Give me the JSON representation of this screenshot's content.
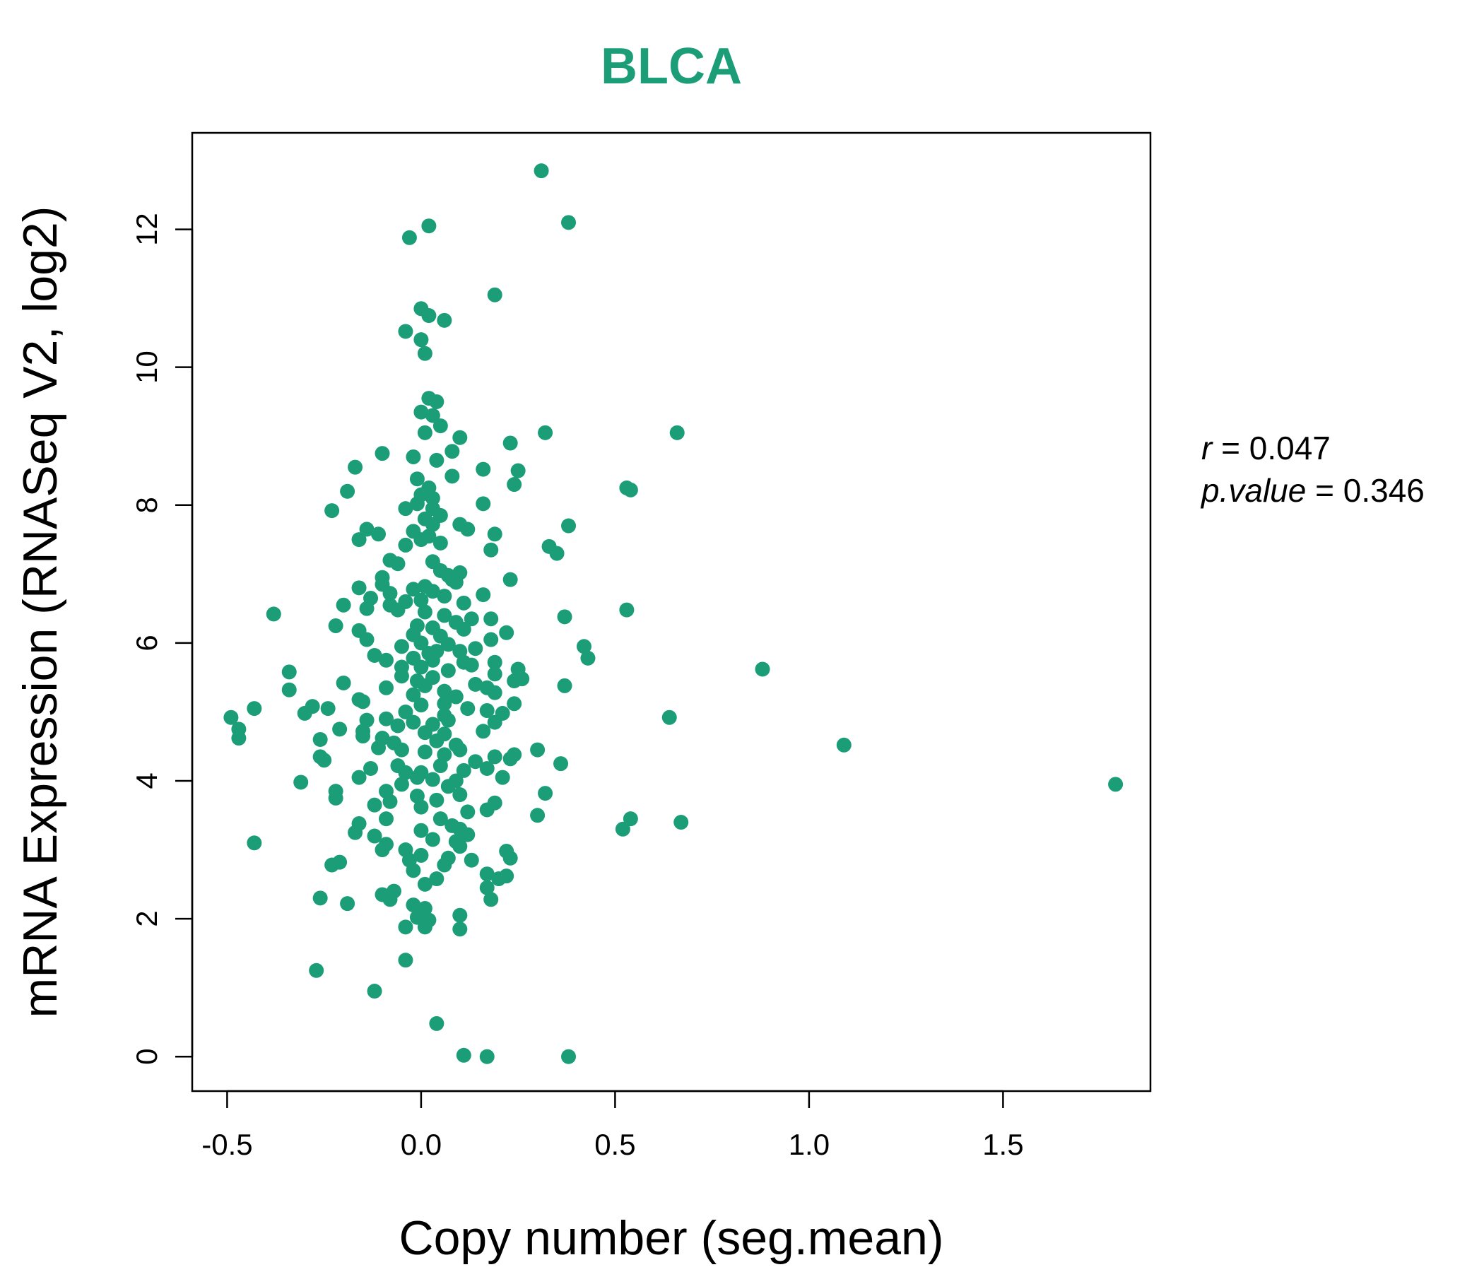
{
  "accent": "#1B9E77",
  "stats": {
    "r_label": "r",
    "r_value": "0.047",
    "p_label": "p.value",
    "p_value": "0.346",
    "equals": "="
  },
  "chart_data": {
    "type": "scatter",
    "title": "BLCA",
    "xlabel": "Copy number (seg.mean)",
    "ylabel": "mRNA Expression (RNASeq V2, log2)",
    "xlim": [
      -0.59,
      1.88
    ],
    "ylim": [
      -0.5,
      13.4
    ],
    "xticks": [
      -0.5,
      0.0,
      0.5,
      1.0,
      1.5
    ],
    "xtick_labels": [
      "-0.5",
      "0.0",
      "0.5",
      "1.0",
      "1.5"
    ],
    "yticks": [
      0,
      2,
      4,
      6,
      8,
      10,
      12
    ],
    "ytick_labels": [
      "0",
      "2",
      "4",
      "6",
      "8",
      "10",
      "12"
    ],
    "grid": false,
    "marker_color": "#1B9E77",
    "points": [
      [
        0.31,
        12.85
      ],
      [
        0.38,
        12.1
      ],
      [
        0.02,
        12.05
      ],
      [
        -0.03,
        11.88
      ],
      [
        0.19,
        11.05
      ],
      [
        0.0,
        10.85
      ],
      [
        0.02,
        10.75
      ],
      [
        0.06,
        10.68
      ],
      [
        -0.04,
        10.52
      ],
      [
        0.0,
        10.4
      ],
      [
        0.01,
        10.2
      ],
      [
        0.02,
        9.55
      ],
      [
        0.04,
        9.5
      ],
      [
        0.0,
        9.35
      ],
      [
        0.03,
        9.3
      ],
      [
        0.05,
        9.15
      ],
      [
        0.01,
        9.05
      ],
      [
        0.66,
        9.05
      ],
      [
        0.32,
        9.05
      ],
      [
        0.1,
        8.98
      ],
      [
        0.23,
        8.9
      ],
      [
        -0.1,
        8.75
      ],
      [
        0.08,
        8.78
      ],
      [
        -0.02,
        8.7
      ],
      [
        0.04,
        8.65
      ],
      [
        -0.17,
        8.55
      ],
      [
        0.16,
        8.52
      ],
      [
        0.25,
        8.5
      ],
      [
        0.08,
        8.42
      ],
      [
        -0.01,
        8.38
      ],
      [
        0.24,
        8.3
      ],
      [
        0.53,
        8.25
      ],
      [
        0.54,
        8.22
      ],
      [
        -0.19,
        8.2
      ],
      [
        0.02,
        8.25
      ],
      [
        0.0,
        8.15
      ],
      [
        0.03,
        8.1
      ],
      [
        -0.01,
        8.02
      ],
      [
        0.16,
        8.02
      ],
      [
        -0.04,
        7.95
      ],
      [
        0.03,
        7.95
      ],
      [
        -0.23,
        7.92
      ],
      [
        0.05,
        7.85
      ],
      [
        0.01,
        7.8
      ],
      [
        0.03,
        7.72
      ],
      [
        0.1,
        7.72
      ],
      [
        0.38,
        7.7
      ],
      [
        0.12,
        7.65
      ],
      [
        -0.14,
        7.65
      ],
      [
        -0.02,
        7.62
      ],
      [
        -0.11,
        7.58
      ],
      [
        0.19,
        7.58
      ],
      [
        0.02,
        7.55
      ],
      [
        -0.16,
        7.5
      ],
      [
        0.0,
        7.5
      ],
      [
        0.05,
        7.45
      ],
      [
        -0.04,
        7.42
      ],
      [
        0.33,
        7.4
      ],
      [
        0.18,
        7.35
      ],
      [
        0.35,
        7.3
      ],
      [
        -0.08,
        7.2
      ],
      [
        -0.06,
        7.15
      ],
      [
        0.03,
        7.18
      ],
      [
        0.05,
        7.05
      ],
      [
        0.1,
        7.02
      ],
      [
        0.07,
        6.98
      ],
      [
        0.08,
        6.92
      ],
      [
        0.09,
        6.88
      ],
      [
        0.23,
        6.92
      ],
      [
        -0.1,
        6.95
      ],
      [
        -0.1,
        6.85
      ],
      [
        -0.16,
        6.8
      ],
      [
        0.01,
        6.82
      ],
      [
        -0.02,
        6.78
      ],
      [
        0.03,
        6.75
      ],
      [
        -0.08,
        6.72
      ],
      [
        -0.13,
        6.65
      ],
      [
        0.16,
        6.7
      ],
      [
        0.06,
        6.68
      ],
      [
        0.0,
        6.62
      ],
      [
        -0.04,
        6.6
      ],
      [
        -0.08,
        6.55
      ],
      [
        0.11,
        6.58
      ],
      [
        -0.2,
        6.55
      ],
      [
        -0.14,
        6.5
      ],
      [
        -0.06,
        6.48
      ],
      [
        0.53,
        6.48
      ],
      [
        -0.38,
        6.42
      ],
      [
        0.01,
        6.45
      ],
      [
        0.06,
        6.4
      ],
      [
        0.13,
        6.35
      ],
      [
        0.18,
        6.35
      ],
      [
        0.37,
        6.38
      ],
      [
        0.09,
        6.3
      ],
      [
        -0.01,
        6.25
      ],
      [
        0.03,
        6.22
      ],
      [
        -0.22,
        6.25
      ],
      [
        -0.16,
        6.18
      ],
      [
        0.11,
        6.2
      ],
      [
        0.22,
        6.15
      ],
      [
        -0.02,
        6.12
      ],
      [
        0.05,
        6.1
      ],
      [
        0.18,
        6.05
      ],
      [
        -0.14,
        6.05
      ],
      [
        0.0,
        6.0
      ],
      [
        0.07,
        5.98
      ],
      [
        0.14,
        5.92
      ],
      [
        0.42,
        5.95
      ],
      [
        -0.05,
        5.95
      ],
      [
        0.1,
        5.88
      ],
      [
        0.04,
        5.88
      ],
      [
        -0.12,
        5.82
      ],
      [
        0.02,
        5.85
      ],
      [
        0.43,
        5.78
      ],
      [
        -0.02,
        5.78
      ],
      [
        0.03,
        5.75
      ],
      [
        -0.09,
        5.75
      ],
      [
        0.11,
        5.72
      ],
      [
        0.19,
        5.72
      ],
      [
        0.13,
        5.68
      ],
      [
        -0.05,
        5.65
      ],
      [
        0.0,
        5.65
      ],
      [
        0.88,
        5.62
      ],
      [
        0.25,
        5.62
      ],
      [
        -0.34,
        5.58
      ],
      [
        0.07,
        5.6
      ],
      [
        0.19,
        5.55
      ],
      [
        -0.05,
        5.52
      ],
      [
        0.03,
        5.5
      ],
      [
        0.26,
        5.48
      ],
      [
        0.24,
        5.45
      ],
      [
        -0.01,
        5.45
      ],
      [
        -0.2,
        5.42
      ],
      [
        0.14,
        5.4
      ],
      [
        0.01,
        5.38
      ],
      [
        0.37,
        5.38
      ],
      [
        -0.09,
        5.35
      ],
      [
        0.17,
        5.35
      ],
      [
        -0.34,
        5.32
      ],
      [
        0.06,
        5.3
      ],
      [
        0.19,
        5.28
      ],
      [
        -0.02,
        5.25
      ],
      [
        0.09,
        5.22
      ],
      [
        -0.16,
        5.18
      ],
      [
        -0.15,
        5.15
      ],
      [
        0.06,
        5.12
      ],
      [
        0.24,
        5.12
      ],
      [
        0.0,
        5.1
      ],
      [
        -0.28,
        5.08
      ],
      [
        -0.43,
        5.05
      ],
      [
        -0.24,
        5.05
      ],
      [
        0.12,
        5.05
      ],
      [
        0.17,
        5.02
      ],
      [
        -0.04,
        5.0
      ],
      [
        -0.3,
        4.98
      ],
      [
        0.21,
        4.98
      ],
      [
        0.06,
        4.95
      ],
      [
        -0.49,
        4.92
      ],
      [
        0.64,
        4.92
      ],
      [
        -0.09,
        4.9
      ],
      [
        -0.14,
        4.88
      ],
      [
        0.07,
        4.88
      ],
      [
        0.19,
        4.85
      ],
      [
        -0.02,
        4.85
      ],
      [
        0.03,
        4.82
      ],
      [
        -0.06,
        4.8
      ],
      [
        -0.47,
        4.75
      ],
      [
        -0.15,
        4.72
      ],
      [
        -0.21,
        4.75
      ],
      [
        0.16,
        4.72
      ],
      [
        0.01,
        4.7
      ],
      [
        0.06,
        4.68
      ],
      [
        -0.15,
        4.65
      ],
      [
        -0.1,
        4.62
      ],
      [
        -0.47,
        4.62
      ],
      [
        -0.26,
        4.6
      ],
      [
        0.04,
        4.58
      ],
      [
        -0.07,
        4.55
      ],
      [
        0.09,
        4.52
      ],
      [
        1.09,
        4.52
      ],
      [
        -0.11,
        4.48
      ],
      [
        -0.05,
        4.45
      ],
      [
        0.1,
        4.45
      ],
      [
        0.3,
        4.45
      ],
      [
        0.01,
        4.42
      ],
      [
        0.24,
        4.38
      ],
      [
        0.06,
        4.38
      ],
      [
        -0.26,
        4.35
      ],
      [
        0.19,
        4.35
      ],
      [
        0.23,
        4.32
      ],
      [
        -0.25,
        4.3
      ],
      [
        0.14,
        4.28
      ],
      [
        0.36,
        4.25
      ],
      [
        -0.06,
        4.22
      ],
      [
        0.05,
        4.22
      ],
      [
        -0.13,
        4.18
      ],
      [
        0.17,
        4.18
      ],
      [
        0.11,
        4.15
      ],
      [
        -0.04,
        4.12
      ],
      [
        0.0,
        4.12
      ],
      [
        -0.16,
        4.05
      ],
      [
        -0.01,
        4.05
      ],
      [
        0.21,
        4.05
      ],
      [
        0.03,
        4.02
      ],
      [
        0.09,
        4.0
      ],
      [
        -0.31,
        3.98
      ],
      [
        1.79,
        3.95
      ],
      [
        -0.05,
        3.95
      ],
      [
        0.07,
        3.92
      ],
      [
        -0.22,
        3.85
      ],
      [
        -0.09,
        3.85
      ],
      [
        0.32,
        3.82
      ],
      [
        0.1,
        3.8
      ],
      [
        -0.01,
        3.78
      ],
      [
        -0.22,
        3.75
      ],
      [
        0.04,
        3.72
      ],
      [
        -0.08,
        3.7
      ],
      [
        0.19,
        3.68
      ],
      [
        -0.12,
        3.65
      ],
      [
        0.0,
        3.62
      ],
      [
        0.17,
        3.58
      ],
      [
        0.12,
        3.55
      ],
      [
        0.3,
        3.5
      ],
      [
        0.54,
        3.45
      ],
      [
        -0.09,
        3.45
      ],
      [
        0.05,
        3.45
      ],
      [
        0.67,
        3.4
      ],
      [
        -0.16,
        3.38
      ],
      [
        0.08,
        3.35
      ],
      [
        0.52,
        3.3
      ],
      [
        0.1,
        3.3
      ],
      [
        0.0,
        3.28
      ],
      [
        -0.17,
        3.25
      ],
      [
        0.12,
        3.22
      ],
      [
        -0.12,
        3.2
      ],
      [
        0.03,
        3.15
      ],
      [
        0.09,
        3.12
      ],
      [
        -0.43,
        3.1
      ],
      [
        -0.09,
        3.08
      ],
      [
        0.1,
        3.05
      ],
      [
        -0.1,
        3.0
      ],
      [
        -0.04,
        3.0
      ],
      [
        0.22,
        2.98
      ],
      [
        0.0,
        2.92
      ],
      [
        0.23,
        2.88
      ],
      [
        0.07,
        2.88
      ],
      [
        -0.03,
        2.85
      ],
      [
        0.13,
        2.85
      ],
      [
        -0.21,
        2.82
      ],
      [
        -0.23,
        2.78
      ],
      [
        0.06,
        2.78
      ],
      [
        -0.02,
        2.7
      ],
      [
        0.17,
        2.65
      ],
      [
        0.22,
        2.62
      ],
      [
        0.04,
        2.58
      ],
      [
        0.2,
        2.58
      ],
      [
        0.01,
        2.5
      ],
      [
        0.17,
        2.45
      ],
      [
        -0.07,
        2.4
      ],
      [
        -0.1,
        2.35
      ],
      [
        -0.26,
        2.3
      ],
      [
        -0.08,
        2.28
      ],
      [
        0.18,
        2.28
      ],
      [
        -0.19,
        2.22
      ],
      [
        -0.02,
        2.2
      ],
      [
        0.01,
        2.15
      ],
      [
        0.1,
        2.05
      ],
      [
        -0.01,
        2.02
      ],
      [
        0.02,
        1.98
      ],
      [
        -0.04,
        1.88
      ],
      [
        0.01,
        1.88
      ],
      [
        0.1,
        1.85
      ],
      [
        -0.04,
        1.4
      ],
      [
        -0.27,
        1.25
      ],
      [
        -0.12,
        0.95
      ],
      [
        0.04,
        0.48
      ],
      [
        0.11,
        0.02
      ],
      [
        0.17,
        0.0
      ],
      [
        0.38,
        0.0
      ]
    ]
  }
}
